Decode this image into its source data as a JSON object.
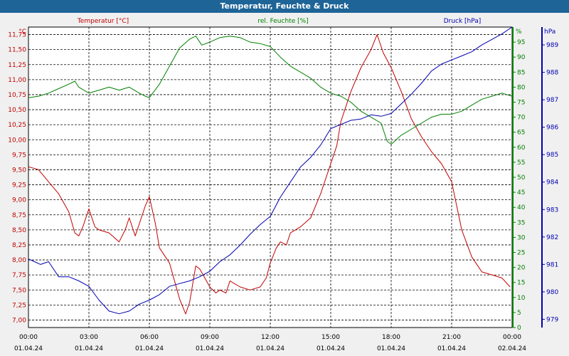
{
  "window": {
    "title": "Temperatur, Feuchte & Druck"
  },
  "colors": {
    "temperature": "#c00000",
    "humidity": "#008000",
    "pressure": "#0000b0",
    "title_bar": "#1e6497"
  },
  "chart_data": {
    "type": "line",
    "title": "Temperatur, Feuchte & Druck",
    "x_ticks": [
      {
        "time": "00:00",
        "date": "01.04.24"
      },
      {
        "time": "03:00",
        "date": "01.04.24"
      },
      {
        "time": "06:00",
        "date": "01.04.24"
      },
      {
        "time": "09:00",
        "date": "01.04.24"
      },
      {
        "time": "12:00",
        "date": "01.04.24"
      },
      {
        "time": "15:00",
        "date": "01.04.24"
      },
      {
        "time": "18:00",
        "date": "01.04.24"
      },
      {
        "time": "21:00",
        "date": "01.04.24"
      },
      {
        "time": "00:00",
        "date": "02.04.24"
      }
    ],
    "x_range_hours": [
      0,
      24
    ],
    "axes": {
      "temperature": {
        "label": "Temperatur [°C]",
        "unit": "°C",
        "range": [
          6.875,
          11.875
        ],
        "ticks": [
          "7,00",
          "7,25",
          "7,50",
          "7,75",
          "8,00",
          "8,25",
          "8,50",
          "8,75",
          "9,00",
          "9,25",
          "9,50",
          "9,75",
          "10,00",
          "10,25",
          "10,50",
          "10,75",
          "11,00",
          "11,25",
          "11,50",
          "11,75"
        ]
      },
      "humidity": {
        "label": "rel. Feuchte [%]",
        "unit": "%",
        "range": [
          0,
          100
        ],
        "ticks": [
          "0",
          "5",
          "10",
          "15",
          "20",
          "25",
          "30",
          "35",
          "40",
          "45",
          "50",
          "55",
          "60",
          "65",
          "70",
          "75",
          "80",
          "85",
          "90",
          "95"
        ]
      },
      "pressure": {
        "label": "Druck [hPa]",
        "unit": "hPa",
        "range": [
          978.7,
          989.65
        ],
        "ticks": [
          "979",
          "980",
          "981",
          "982",
          "983",
          "984",
          "985",
          "986",
          "987",
          "988",
          "989"
        ]
      }
    },
    "series": [
      {
        "name": "Temperatur [°C]",
        "axis": "temperature",
        "x": [
          0,
          0.5,
          1,
          1.5,
          2,
          2.3,
          2.5,
          2.7,
          3,
          3.3,
          3.5,
          4,
          4.5,
          4.8,
          5,
          5.3,
          5.5,
          5.8,
          6,
          6.3,
          6.5,
          7,
          7.5,
          7.8,
          8,
          8.3,
          8.5,
          9,
          9.3,
          9.5,
          9.8,
          10,
          10.5,
          11,
          11.5,
          11.8,
          12,
          12.3,
          12.5,
          12.8,
          13,
          13.5,
          14,
          14.5,
          15,
          15.3,
          15.5,
          16,
          16.5,
          17,
          17.3,
          17.6,
          18,
          18.5,
          19,
          19.5,
          20,
          20.5,
          21,
          21.5,
          22,
          22.5,
          23,
          23.5,
          23.9
        ],
        "values": [
          9.55,
          9.5,
          9.3,
          9.1,
          8.8,
          8.45,
          8.4,
          8.55,
          8.85,
          8.55,
          8.5,
          8.45,
          8.3,
          8.5,
          8.7,
          8.4,
          8.6,
          8.9,
          9.05,
          8.6,
          8.2,
          7.95,
          7.35,
          7.1,
          7.3,
          7.9,
          7.85,
          7.55,
          7.45,
          7.5,
          7.45,
          7.65,
          7.55,
          7.5,
          7.55,
          7.7,
          7.95,
          8.2,
          8.3,
          8.25,
          8.45,
          8.55,
          8.7,
          9.1,
          9.6,
          9.9,
          10.3,
          10.8,
          11.2,
          11.5,
          11.75,
          11.45,
          11.2,
          10.8,
          10.35,
          10.05,
          9.8,
          9.6,
          9.3,
          8.5,
          8.05,
          7.8,
          7.75,
          7.7,
          7.55
        ]
      },
      {
        "name": "rel. Feuchte [%]",
        "axis": "humidity",
        "x": [
          0,
          0.5,
          1,
          1.5,
          2,
          2.3,
          2.5,
          3,
          3.5,
          4,
          4.5,
          5,
          5.5,
          5.8,
          6,
          6.5,
          7,
          7.5,
          8,
          8.3,
          8.6,
          9,
          9.5,
          10,
          10.5,
          11,
          11.5,
          12,
          12.5,
          13,
          13.5,
          14,
          14.5,
          15,
          15.5,
          16,
          16.5,
          17,
          17.5,
          17.8,
          18,
          18.5,
          19,
          19.5,
          20,
          20.5,
          21,
          21.5,
          22,
          22.5,
          23,
          23.5,
          24
        ],
        "values": [
          76.5,
          77,
          78,
          79.5,
          81,
          82,
          80,
          78,
          79,
          80,
          79,
          80,
          78,
          77,
          76.5,
          81,
          87,
          93,
          96,
          97,
          94,
          95,
          96.5,
          97,
          96.5,
          95,
          94.5,
          93.5,
          90,
          87,
          85,
          83,
          80,
          78,
          77,
          75,
          72,
          70,
          68,
          62,
          61,
          64,
          66,
          68,
          70,
          71,
          71,
          72,
          74,
          76,
          77,
          78,
          77
        ]
      },
      {
        "name": "Druck [hPa]",
        "axis": "pressure",
        "x": [
          0,
          0.3,
          0.6,
          1,
          1.5,
          2,
          2.5,
          3,
          3.5,
          4,
          4.5,
          5,
          5.5,
          6,
          6.5,
          7,
          7.5,
          8,
          8.5,
          9,
          9.5,
          10,
          10.5,
          11,
          11.5,
          12,
          12.5,
          13,
          13.5,
          14,
          14.5,
          15,
          15.5,
          16,
          16.5,
          17,
          17.5,
          18,
          18.5,
          19,
          19.5,
          20,
          20.5,
          21,
          21.5,
          22,
          22.5,
          23,
          23.5,
          24
        ],
        "values": [
          981.2,
          981.1,
          981,
          981.1,
          980.55,
          980.55,
          980.4,
          980.2,
          979.7,
          979.3,
          979.2,
          979.3,
          979.55,
          979.7,
          979.9,
          980.2,
          980.3,
          980.4,
          980.55,
          980.75,
          981.1,
          981.35,
          981.7,
          982.1,
          982.45,
          982.75,
          983.45,
          984,
          984.55,
          984.9,
          985.35,
          985.95,
          986.1,
          986.25,
          986.3,
          986.45,
          986.4,
          986.5,
          986.85,
          987.2,
          987.6,
          988.05,
          988.3,
          988.45,
          988.6,
          988.75,
          989,
          989.2,
          989.4,
          989.65
        ]
      }
    ]
  }
}
